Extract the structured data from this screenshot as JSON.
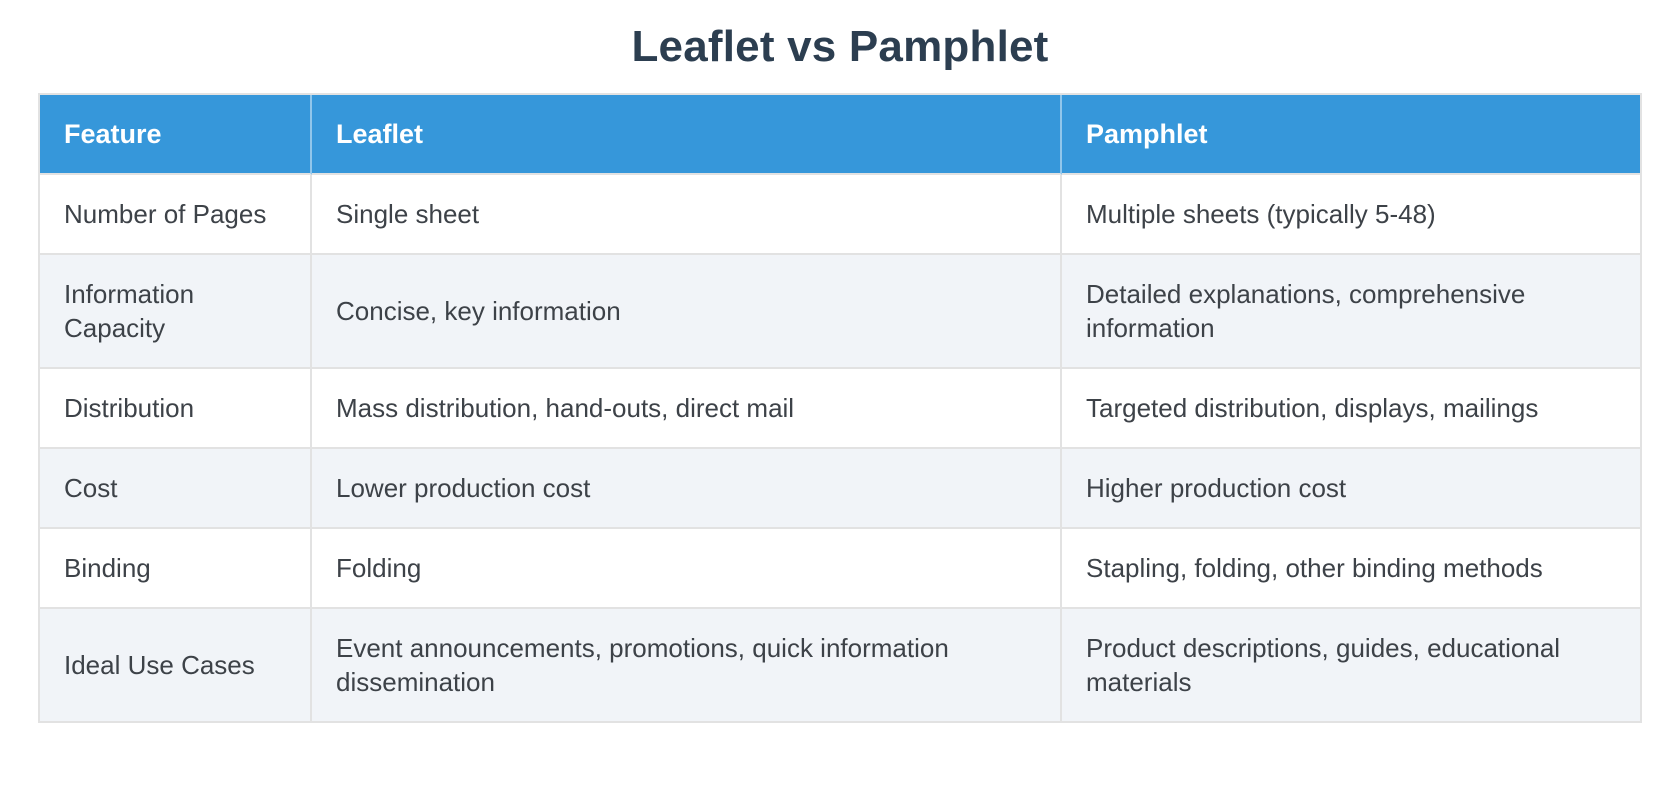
{
  "title": "Leaflet vs Pamphlet",
  "table": {
    "columns": [
      "Feature",
      "Leaflet",
      "Pamphlet"
    ],
    "rows": [
      [
        "Number of Pages",
        "Single sheet",
        "Multiple sheets (typically 5-48)"
      ],
      [
        "Information Capacity",
        "Concise, key information",
        "Detailed explanations, comprehensive information"
      ],
      [
        "Distribution",
        "Mass distribution, hand-outs, direct mail",
        "Targeted distribution, displays, mailings"
      ],
      [
        "Cost",
        "Lower production cost",
        "Higher production cost"
      ],
      [
        "Binding",
        "Folding",
        "Stapling, folding, other binding methods"
      ],
      [
        "Ideal Use Cases",
        "Event announcements, promotions, quick information dissemination",
        "Product descriptions, guides, educational materials"
      ]
    ]
  },
  "colors": {
    "header_bg": "#3697da",
    "header_text": "#ffffff",
    "row_alt_bg": "#f1f4f8",
    "row_bg": "#ffffff",
    "border_color": "#e2e2e2",
    "title_color": "#2c3e50",
    "body_text": "#3d4248",
    "page_bg": "#ffffff"
  }
}
